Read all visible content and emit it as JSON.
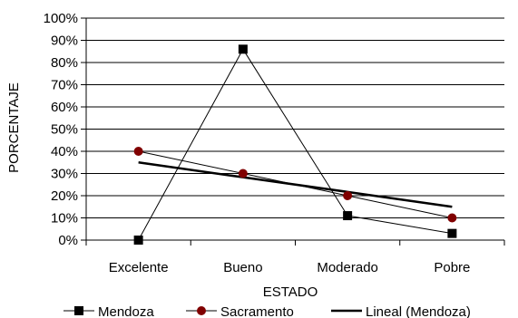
{
  "chart_data": {
    "type": "line",
    "title": "",
    "xlabel": "ESTADO",
    "ylabel": "PORCENTAJE",
    "categories": [
      "Excelente",
      "Bueno",
      "Moderado",
      "Pobre"
    ],
    "ylim": [
      0,
      100
    ],
    "yticks": [
      "0%",
      "10%",
      "20%",
      "30%",
      "40%",
      "50%",
      "60%",
      "70%",
      "80%",
      "90%",
      "100%"
    ],
    "grid": true,
    "legend_position": "bottom",
    "series": [
      {
        "name": "Mendoza",
        "values": [
          0,
          86,
          11,
          3
        ],
        "marker": "square",
        "color": "#000000"
      },
      {
        "name": "Sacramento",
        "values": [
          40,
          30,
          20,
          10
        ],
        "marker": "circle",
        "color": "#800000"
      },
      {
        "name": "Lineal (Mendoza)",
        "values": [
          35,
          28.3,
          21.7,
          15
        ],
        "marker": "none",
        "color": "#000000",
        "trendline": true
      }
    ]
  }
}
